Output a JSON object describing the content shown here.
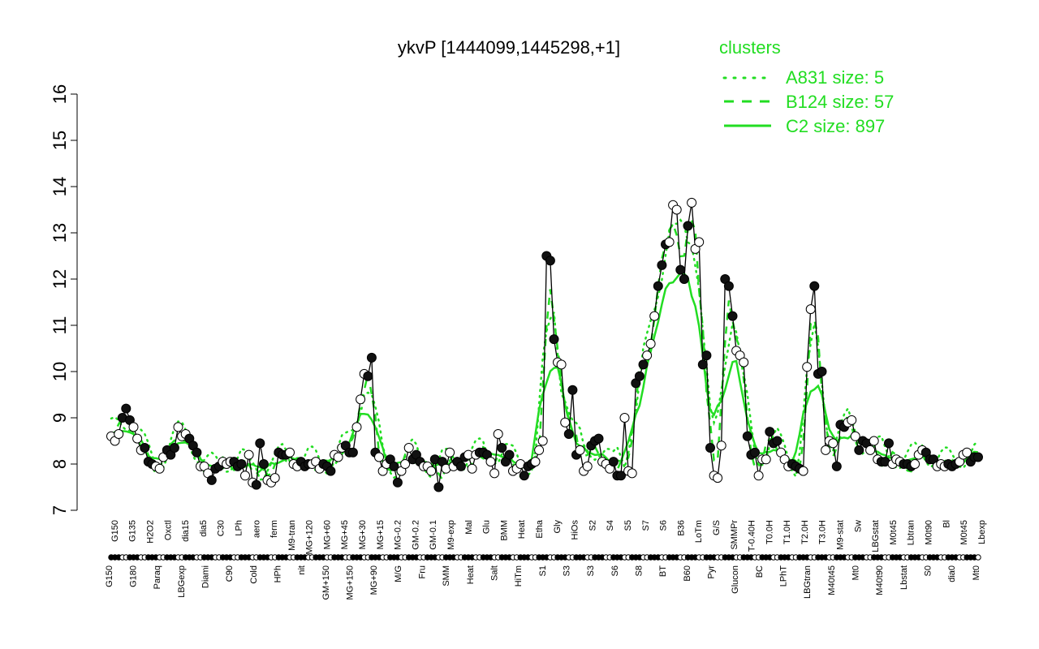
{
  "chart_data": {
    "type": "line",
    "title": "ykvP [1444099,1445298,+1]",
    "xlabel": "",
    "ylabel": "",
    "ylim": [
      7,
      16
    ],
    "y_ticks": [
      "7",
      "8",
      "9",
      "10",
      "11",
      "12",
      "13",
      "14",
      "15",
      "16"
    ],
    "x_tick_labels_row1": [
      "G150",
      "G135",
      "H2O2",
      "Oxctl",
      "dia15",
      "dia5",
      "C30",
      "LPh",
      "aero",
      "ferm",
      "M9-tran",
      "MG+120",
      "MG+60",
      "MG+45",
      "MG+30",
      "MG+15",
      "MG-0.2",
      "GM-0.2",
      "GM-0.1",
      "M9-exp",
      "Mal",
      "Glu",
      "BMM",
      "Heat",
      "Etha",
      "Gly",
      "HiOs",
      "S2",
      "S4",
      "S5",
      "S7",
      "S6",
      "B36",
      "LoTm",
      "G/S",
      "SMMPr",
      "T-0.40H",
      "T0.0H",
      "T1.0H",
      "T2.0H",
      "T3.0H",
      "M9-stat",
      "Sw",
      "LBGstat",
      "M0t45",
      "Lbtran",
      "M0t90",
      "Bl",
      "M0t45",
      "Lbexp"
    ],
    "x_tick_labels_row2": [
      "G150",
      "G180",
      "Paraq",
      "LBGexp",
      "Diami",
      "C90",
      "Cold",
      "HPh",
      "nit",
      "GM+150",
      "MG+150",
      "MG+90",
      "M/G",
      "Fru",
      "SMM",
      "Heat",
      "Salt",
      "HiTm",
      "S1",
      "S3",
      "S3",
      "S6",
      "S8",
      "BT",
      "B60",
      "Pyr",
      "Glucon",
      "BC",
      "LPhT",
      "LBGtran",
      "M40t45",
      "Mt0",
      "M40t90",
      "Lbstat",
      "S0",
      "dia0",
      "Mt0"
    ],
    "legend": {
      "title": "clusters",
      "color": "#22dd22",
      "entries": [
        {
          "label": "A831 size: 5",
          "style": "dotted"
        },
        {
          "label": "B124 size: 57",
          "style": "dashed"
        },
        {
          "label": "C2 size: 897",
          "style": "solid"
        }
      ]
    },
    "series": [
      {
        "style": "points",
        "values": [
          8.6,
          8.5,
          8.65,
          9.0,
          9.2,
          8.95,
          8.8,
          8.55,
          8.3,
          8.35,
          8.05,
          8.0,
          7.95,
          7.9,
          8.15,
          8.3,
          8.2,
          8.35,
          8.8,
          8.6,
          8.65,
          8.55,
          8.4,
          8.25,
          7.95,
          7.95,
          7.8,
          7.65,
          7.9,
          7.95,
          8.05,
          8.0,
          8.05,
          8.05,
          7.95,
          8.0,
          7.75,
          8.2,
          7.6,
          7.55,
          8.45,
          8.0,
          7.65,
          7.6,
          7.7,
          8.25,
          8.2,
          8.2,
          8.25,
          8.0,
          7.95,
          8.05,
          7.95,
          8.0,
          8.0,
          8.05,
          7.9,
          8.0,
          7.95,
          7.85,
          8.2,
          8.15,
          8.35,
          8.4,
          8.25,
          8.25,
          8.8,
          9.4,
          9.95,
          9.9,
          10.3,
          8.25,
          8.15,
          7.85,
          8.0,
          8.1,
          7.95,
          7.6,
          7.85,
          8.0,
          8.35,
          8.1,
          8.2,
          8.05,
          7.95,
          7.95,
          7.85,
          8.1,
          7.5,
          8.05,
          7.9,
          8.25,
          7.95,
          8.05,
          7.95,
          8.15,
          8.2,
          7.9,
          8.2,
          8.25,
          8.25,
          8.2,
          8.05,
          7.8,
          8.65,
          8.35,
          8.05,
          8.2,
          7.85,
          7.9,
          8.0,
          7.75,
          7.95,
          8.0,
          8.05,
          8.3,
          8.5,
          12.5,
          12.4,
          10.7,
          10.2,
          10.15,
          8.9,
          8.65,
          9.6,
          8.2,
          8.3,
          7.85,
          7.95,
          8.4,
          8.5,
          8.55,
          8.05,
          8.0,
          7.9,
          8.05,
          7.75,
          7.75,
          9.0,
          7.85,
          7.8,
          9.75,
          9.9,
          10.15,
          10.35,
          10.6,
          11.2,
          11.85,
          12.3,
          12.75,
          12.8,
          13.6,
          13.5,
          12.2,
          12.0,
          13.15,
          13.65,
          12.65,
          12.8,
          10.15,
          10.35,
          8.35,
          7.75,
          7.7,
          8.4,
          12.0,
          11.85,
          11.2,
          10.45,
          10.35,
          10.2,
          8.6,
          8.2,
          8.25,
          7.75,
          8.1,
          8.1,
          8.7,
          8.45,
          8.5,
          8.25,
          8.1,
          7.95,
          8.0,
          7.95,
          7.9,
          7.85,
          10.1,
          11.35,
          11.85,
          9.95,
          10.0,
          8.3,
          8.5,
          8.45,
          7.95,
          8.85,
          8.8,
          8.9,
          8.95,
          8.6,
          8.3,
          8.5,
          8.45,
          8.3,
          8.5,
          8.1,
          8.05,
          8.05,
          8.45,
          8.0,
          8.1,
          8.05,
          8.0,
          8.0,
          7.95,
          8.0,
          8.2,
          8.3,
          8.25,
          8.1,
          8.1,
          7.95,
          8.0,
          7.95,
          8.0,
          7.95,
          8.0,
          8.05,
          8.2,
          8.25,
          8.05,
          8.15,
          8.15
        ]
      },
      {
        "name": "A831 size: 5",
        "style": "dotted"
      },
      {
        "name": "B124 size: 57",
        "style": "dashed"
      },
      {
        "name": "C2 size: 897",
        "style": "solid"
      }
    ]
  }
}
